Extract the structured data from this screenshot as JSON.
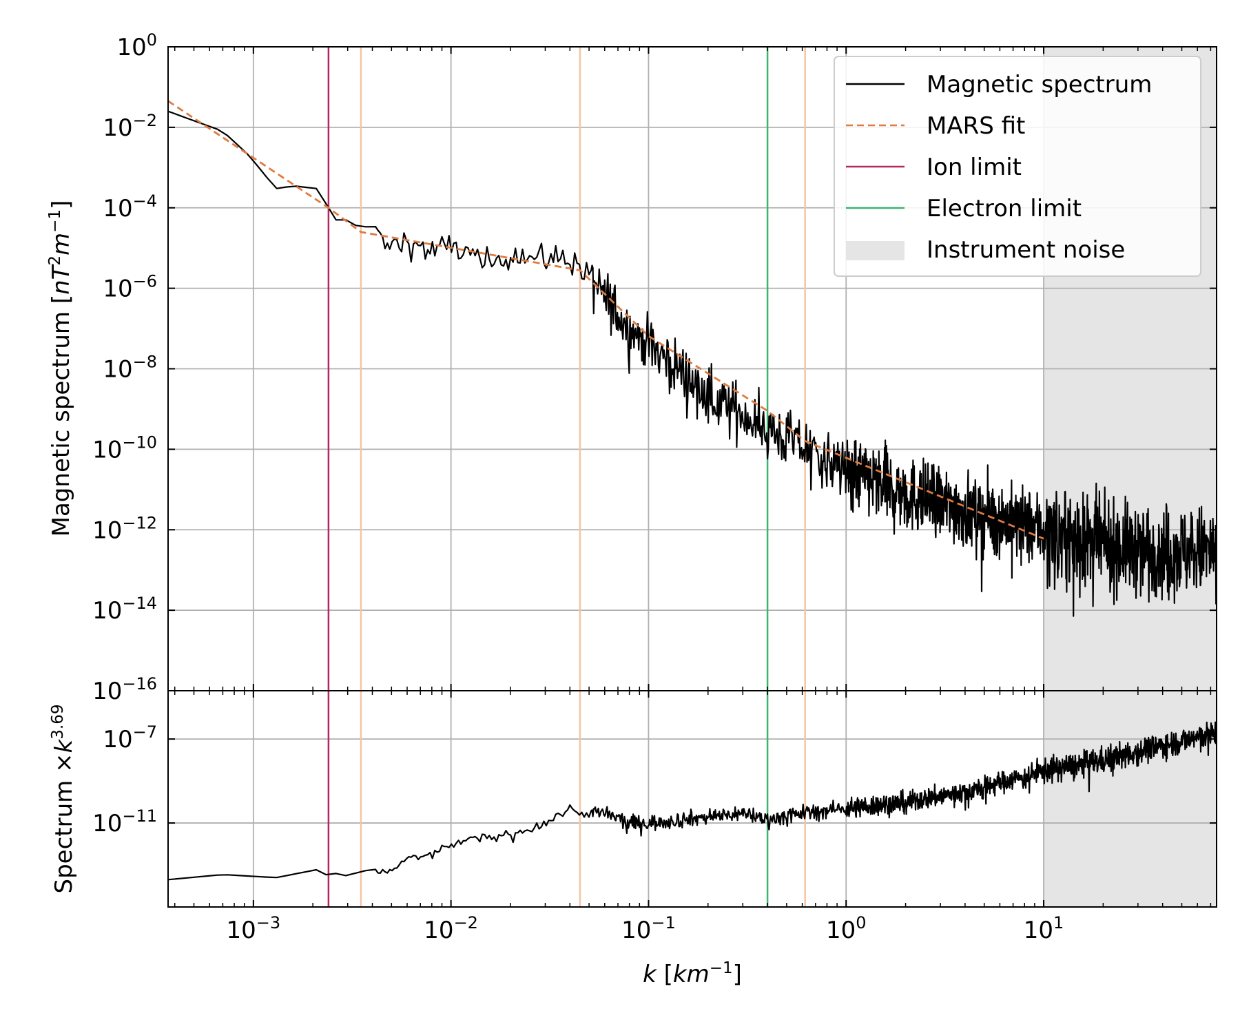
{
  "chart_data": [
    {
      "type": "line",
      "panel": "top",
      "xlabel_var": "k",
      "xlabel_unit": "km",
      "xlabel_exp": "−1",
      "ylabel_text": "Magnetic spectrum",
      "ylabel_unit_parts": [
        "nT",
        "2",
        "m",
        "−1"
      ],
      "xscale": "log",
      "yscale": "log",
      "xlim": [
        0.00037,
        75
      ],
      "ylim": [
        1e-16,
        1
      ],
      "grid": true,
      "legend_position": "top-right",
      "x_ticks": [
        {
          "value": 0.001,
          "base": "10",
          "exp": "−3"
        },
        {
          "value": 0.01,
          "base": "10",
          "exp": "−2"
        },
        {
          "value": 0.1,
          "base": "10",
          "exp": "−1"
        },
        {
          "value": 1,
          "base": "10",
          "exp": "0"
        },
        {
          "value": 10,
          "base": "10",
          "exp": "1"
        }
      ],
      "y_ticks": [
        {
          "value": 1,
          "base": "10",
          "exp": "0"
        },
        {
          "value": 0.01,
          "base": "10",
          "exp": "−2"
        },
        {
          "value": 0.0001,
          "base": "10",
          "exp": "−4"
        },
        {
          "value": 1e-06,
          "base": "10",
          "exp": "−6"
        },
        {
          "value": 1e-08,
          "base": "10",
          "exp": "−8"
        },
        {
          "value": 1e-10,
          "base": "10",
          "exp": "−10"
        },
        {
          "value": 1e-12,
          "base": "10",
          "exp": "−12"
        },
        {
          "value": 1e-14,
          "base": "10",
          "exp": "−14"
        },
        {
          "value": 1e-16,
          "base": "10",
          "exp": "−16"
        }
      ],
      "series": [
        {
          "name": "Magnetic spectrum",
          "color": "#000000",
          "style": "solid",
          "x": [
            0.00037,
            0.0007,
            0.00095,
            0.0013,
            0.0016,
            0.0021,
            0.0024,
            0.0026,
            0.003,
            0.0035,
            0.004,
            0.0048,
            0.006,
            0.008,
            0.01,
            0.015,
            0.02,
            0.03,
            0.04,
            0.045,
            0.06,
            0.08,
            0.1,
            0.15,
            0.2,
            0.3,
            0.4,
            0.6,
            1,
            2,
            4,
            10,
            20,
            40,
            75
          ],
          "y": [
            0.025,
            0.008,
            0.002,
            0.0003,
            0.00035,
            0.0003,
            0.0001,
            5e-05,
            5e-05,
            3e-05,
            4e-05,
            1e-05,
            1.5e-05,
            8e-06,
            1.2e-05,
            4e-06,
            8e-06,
            5e-06,
            6e-06,
            3e-06,
            6e-07,
            1e-07,
            4e-08,
            8e-09,
            2e-09,
            8e-10,
            3e-10,
            1.2e-10,
            3e-11,
            8e-12,
            3e-12,
            1e-12,
            4e-13,
            3e-13,
            3e-13
          ]
        },
        {
          "name": "MARS fit",
          "color": "#e07a3f",
          "style": "dashed",
          "x": [
            0.00037,
            0.0024,
            0.0035,
            0.045,
            0.1,
            0.4,
            0.62,
            10
          ],
          "y": [
            0.045,
            0.0001,
            2.5e-05,
            2.8e-06,
            6.5e-08,
            9e-10,
            1.6e-10,
            6e-13
          ]
        },
        {
          "name": "Ion limit",
          "color": "#b5285f",
          "style": "vline",
          "x_value": 0.0024
        },
        {
          "name": "Electron limit",
          "color": "#3cb371",
          "style": "vline",
          "x_value": 0.4
        },
        {
          "name": "Instrument noise",
          "color": "#e5e5e5",
          "style": "span",
          "x_range": [
            10,
            75
          ]
        }
      ],
      "fit_breakpoints": {
        "color": "#f6c4a2",
        "x_values": [
          0.0035,
          0.045,
          0.62
        ]
      }
    },
    {
      "type": "line",
      "panel": "bottom",
      "ylabel_text": "Spectrum ×",
      "ylabel_var": "k",
      "ylabel_exp": "3.69",
      "xscale": "log",
      "yscale": "log",
      "xlim": [
        0.00037,
        75
      ],
      "ylim": [
        1e-15,
        2e-05
      ],
      "y_ticks": [
        {
          "value": 1e-07,
          "base": "10",
          "exp": "−7"
        },
        {
          "value": 1e-11,
          "base": "10",
          "exp": "−11"
        }
      ],
      "series": [
        {
          "name": "Spectrum × k^3.69",
          "color": "#000000",
          "style": "solid",
          "x": [
            0.00037,
            0.0007,
            0.0013,
            0.0021,
            0.0024,
            0.0026,
            0.003,
            0.0035,
            0.004,
            0.005,
            0.006,
            0.008,
            0.01,
            0.015,
            0.02,
            0.03,
            0.04,
            0.045,
            0.06,
            0.08,
            0.1,
            0.15,
            0.2,
            0.3,
            0.4,
            0.6,
            1,
            2,
            4,
            10,
            20,
            40,
            75
          ],
          "y": [
            2e-14,
            3.5e-14,
            2.5e-14,
            6e-14,
            3e-14,
            4e-14,
            3e-14,
            5e-14,
            6e-14,
            5e-14,
            2e-13,
            3e-13,
            1e-12,
            2e-12,
            3e-12,
            1e-11,
            5e-11,
            3e-11,
            3e-11,
            1e-11,
            1e-11,
            1.5e-11,
            2e-11,
            3e-11,
            1.5e-11,
            3e-11,
            5e-11,
            1e-10,
            3e-10,
            3e-09,
            1e-08,
            5e-08,
            2e-07
          ]
        }
      ]
    }
  ]
}
